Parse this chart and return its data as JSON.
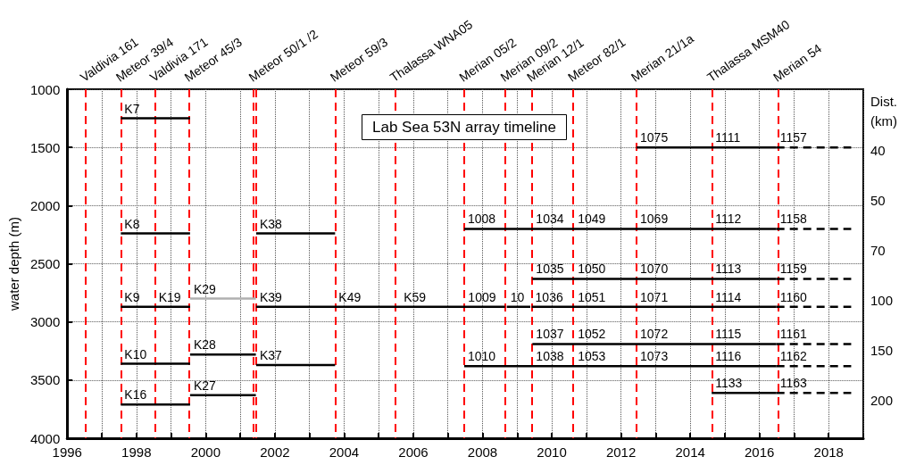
{
  "chart_data": {
    "type": "line",
    "title": "Lab Sea 53N array timeline",
    "ylabel": "water depth (m)",
    "annotations": [
      "Dist. (km)",
      "40",
      "50",
      "70",
      "100",
      "150",
      "200",
      {
        "text": "K7",
        "x": 1997.55,
        "y": 1250
      },
      {
        "text": "1075",
        "x": 2012.45,
        "y": 1500
      },
      {
        "text": "1111",
        "x": 2014.62,
        "y": 1500
      },
      {
        "text": "1157",
        "x": 2016.49,
        "y": 1500
      },
      {
        "text": "K8",
        "x": 1997.55,
        "y": 2240
      },
      {
        "text": "K38",
        "x": 2001.46,
        "y": 2240
      },
      {
        "text": "1008",
        "x": 2007.47,
        "y": 2200
      },
      {
        "text": "1034",
        "x": 2009.44,
        "y": 2200
      },
      {
        "text": "1049",
        "x": 2010.65,
        "y": 2200
      },
      {
        "text": "1069",
        "x": 2012.45,
        "y": 2200
      },
      {
        "text": "1112",
        "x": 2014.62,
        "y": 2200
      },
      {
        "text": "1158",
        "x": 2016.49,
        "y": 2200
      },
      {
        "text": "1035",
        "x": 2009.44,
        "y": 2630
      },
      {
        "text": "1050",
        "x": 2010.65,
        "y": 2630
      },
      {
        "text": "1070",
        "x": 2012.45,
        "y": 2630
      },
      {
        "text": "1113",
        "x": 2014.62,
        "y": 2630
      },
      {
        "text": "1159",
        "x": 2016.49,
        "y": 2630
      },
      {
        "text": "K9",
        "x": 1997.55,
        "y": 2870
      },
      {
        "text": "K19",
        "x": 1998.54,
        "y": 2870
      },
      {
        "text": "K29",
        "x": 1999.55,
        "y": 2800
      },
      {
        "text": "K39",
        "x": 2001.46,
        "y": 2870
      },
      {
        "text": "K49",
        "x": 2003.74,
        "y": 2870
      },
      {
        "text": "K59",
        "x": 2005.62,
        "y": 2870
      },
      {
        "text": "1009",
        "x": 2007.48,
        "y": 2870
      },
      {
        "text": "10",
        "x": 2008.7,
        "y": 2870
      },
      {
        "text": "1036",
        "x": 2009.42,
        "y": 2870
      },
      {
        "text": "1051",
        "x": 2010.65,
        "y": 2870
      },
      {
        "text": "1071",
        "x": 2012.45,
        "y": 2870
      },
      {
        "text": "1114",
        "x": 2014.62,
        "y": 2870
      },
      {
        "text": "1160",
        "x": 2016.49,
        "y": 2870
      },
      {
        "text": "1037",
        "x": 2009.44,
        "y": 3190
      },
      {
        "text": "1052",
        "x": 2010.65,
        "y": 3190
      },
      {
        "text": "1072",
        "x": 2012.45,
        "y": 3190
      },
      {
        "text": "1115",
        "x": 2014.62,
        "y": 3190
      },
      {
        "text": "1161",
        "x": 2016.49,
        "y": 3190
      },
      {
        "text": "K28",
        "x": 1999.55,
        "y": 3280
      },
      {
        "text": "K10",
        "x": 1997.55,
        "y": 3360
      },
      {
        "text": "K37",
        "x": 2001.46,
        "y": 3370
      },
      {
        "text": "1010",
        "x": 2007.47,
        "y": 3380
      },
      {
        "text": "1038",
        "x": 2009.44,
        "y": 3380
      },
      {
        "text": "1053",
        "x": 2010.65,
        "y": 3380
      },
      {
        "text": "1073",
        "x": 2012.45,
        "y": 3380
      },
      {
        "text": "1116",
        "x": 2014.62,
        "y": 3380
      },
      {
        "text": "1162",
        "x": 2016.49,
        "y": 3380
      },
      {
        "text": "K27",
        "x": 1999.55,
        "y": 3630
      },
      {
        "text": "1133",
        "x": 2014.62,
        "y": 3610
      },
      {
        "text": "1163",
        "x": 2016.49,
        "y": 3610
      },
      {
        "text": "K16",
        "x": 1997.55,
        "y": 3710
      }
    ],
    "xlim": [
      1996,
      2019
    ],
    "xticks": [
      1996,
      {
        "value": 1997,
        "label": null
      },
      1998,
      {
        "value": 1999,
        "label": null
      },
      2000,
      {
        "value": 2001,
        "label": null
      },
      2002,
      {
        "value": 2003,
        "label": null
      },
      2004,
      {
        "value": 2005,
        "label": null
      },
      2006,
      {
        "value": 2007,
        "label": null
      },
      2008,
      {
        "value": 2009,
        "label": null
      },
      2010,
      {
        "value": 2011,
        "label": null
      },
      2012,
      {
        "value": 2013,
        "label": null
      },
      2014,
      {
        "value": 2015,
        "label": null
      },
      2016,
      {
        "value": 2017,
        "label": null
      },
      2018,
      {
        "value": 2019,
        "label": null
      }
    ],
    "ylim": [
      4000,
      1000
    ],
    "yticks": [
      1000,
      1500,
      2000,
      2500,
      3000,
      3500,
      4000
    ],
    "grid": true,
    "ref_lines": [
      {
        "axis": "x",
        "value": 1996.52,
        "label": "Valdivia 161",
        "color": "#ff0000",
        "line_style": "dashed"
      },
      {
        "axis": "x",
        "value": 1997.55,
        "label": "Meteor 39/4",
        "color": "#ff0000",
        "line_style": "dashed"
      },
      {
        "axis": "x",
        "value": 1998.53,
        "label": "Valdivia 171",
        "color": "#ff0000",
        "line_style": "dashed"
      },
      {
        "axis": "x",
        "value": 1999.53,
        "label": "Meteor 45/3",
        "color": "#ff0000",
        "line_style": "dashed"
      },
      {
        "axis": "x",
        "value": 2001.39,
        "label": "Meteor 50/1 /2",
        "color": "#ff0000",
        "line_style": "dashed"
      },
      {
        "axis": "x",
        "value": 2001.45,
        "label": null,
        "color": "#ff0000",
        "line_style": "dashed"
      },
      {
        "axis": "x",
        "value": 2003.74,
        "label": "Meteor 59/3",
        "color": "#ff0000",
        "line_style": "dashed"
      },
      {
        "axis": "x",
        "value": 2005.47,
        "label": "Thalassa WNA05",
        "color": "#ff0000",
        "line_style": "dashed"
      },
      {
        "axis": "x",
        "value": 2007.47,
        "label": "Merian 05/2",
        "color": "#ff0000",
        "line_style": "dashed"
      },
      {
        "axis": "x",
        "value": 2008.66,
        "label": "Merian 09/2",
        "color": "#ff0000",
        "line_style": "dashed"
      },
      {
        "axis": "x",
        "value": 2009.42,
        "label": "Merian 12/1",
        "color": "#ff0000",
        "line_style": "dashed"
      },
      {
        "axis": "x",
        "value": 2010.61,
        "label": "Meteor 82/1",
        "color": "#ff0000",
        "line_style": "dashed"
      },
      {
        "axis": "x",
        "value": 2012.43,
        "label": "Merian 21/1a",
        "color": "#ff0000",
        "line_style": "dashed"
      },
      {
        "axis": "x",
        "value": 2014.63,
        "label": "Thalassa MSM40",
        "color": "#ff0000",
        "line_style": "dashed"
      },
      {
        "axis": "x",
        "value": 2016.54,
        "label": "Merian 54",
        "color": "#ff0000",
        "line_style": "dashed"
      }
    ],
    "series": [
      {
        "color": "#000000",
        "x": [
          1997.55,
          1999.55
        ],
        "values": [
          1250,
          1250
        ]
      },
      {
        "color": "#000000",
        "x": [
          2012.45,
          2014.62,
          2016.49
        ],
        "values": [
          1500,
          1500,
          1500
        ]
      },
      {
        "color": "#000000",
        "x": [
          2016.49,
          2018.65
        ],
        "values": [
          1500,
          1500
        ],
        "line_style": "dashed"
      },
      {
        "color": "#000000",
        "x": [
          1997.55,
          1999.55,
          2000.5,
          2001.46,
          2003.74
        ],
        "values": [
          2240,
          2240,
          null,
          2240,
          2240
        ]
      },
      {
        "color": "#000000",
        "x": [
          2007.47,
          2009.44,
          2010.65,
          2012.45,
          2014.62,
          2016.49
        ],
        "values": [
          2200,
          2200,
          2200,
          2200,
          2200,
          2200
        ]
      },
      {
        "color": "#000000",
        "x": [
          2016.49,
          2018.65
        ],
        "values": [
          2200,
          2200
        ],
        "line_style": "dashed"
      },
      {
        "color": "#000000",
        "x": [
          2009.44,
          2010.65,
          2012.45,
          2014.62,
          2016.49
        ],
        "values": [
          2630,
          2630,
          2630,
          2630,
          2630
        ]
      },
      {
        "color": "#000000",
        "x": [
          2016.49,
          2018.65
        ],
        "values": [
          2630,
          2630
        ],
        "line_style": "dashed"
      },
      {
        "color": "#000000",
        "x": [
          1997.55,
          1998.54,
          1999.55,
          2000.5,
          2001.46,
          2003.74,
          2005.62,
          2007.48,
          2008.65,
          2008.68,
          2008.7,
          2009.38,
          2009.4,
          2009.42,
          2010.65,
          2012.45,
          2014.62,
          2016.49
        ],
        "values": [
          2870,
          2870,
          2870,
          null,
          2870,
          2870,
          2870,
          2870,
          2870,
          null,
          2870,
          2870,
          null,
          2870,
          2870,
          2870,
          2870,
          2870
        ]
      },
      {
        "color": "#b0b0b0",
        "x": [
          1999.55,
          2001.45
        ],
        "values": [
          2800,
          2800
        ]
      },
      {
        "color": "#000000",
        "x": [
          2016.49,
          2018.65
        ],
        "values": [
          2870,
          2870
        ],
        "line_style": "dashed"
      },
      {
        "color": "#000000",
        "x": [
          2009.44,
          2010.65,
          2012.45,
          2014.62,
          2016.49
        ],
        "values": [
          3190,
          3190,
          3190,
          3190,
          3190
        ]
      },
      {
        "color": "#000000",
        "x": [
          2016.49,
          2018.65
        ],
        "values": [
          3190,
          3190
        ],
        "line_style": "dashed"
      },
      {
        "color": "#000000",
        "x": [
          1999.55,
          2001.45
        ],
        "values": [
          3280,
          3280
        ]
      },
      {
        "color": "#000000",
        "x": [
          1997.55,
          1999.55
        ],
        "values": [
          3360,
          3360
        ]
      },
      {
        "color": "#000000",
        "x": [
          2001.46,
          2003.74
        ],
        "values": [
          3370,
          3370
        ]
      },
      {
        "color": "#000000",
        "x": [
          2007.47,
          2009.44,
          2010.65,
          2012.45,
          2014.62,
          2016.49
        ],
        "values": [
          3380,
          3380,
          3380,
          3380,
          3380,
          3380
        ]
      },
      {
        "color": "#000000",
        "x": [
          2016.49,
          2018.65
        ],
        "values": [
          3380,
          3380
        ],
        "line_style": "dashed"
      },
      {
        "color": "#000000",
        "x": [
          1999.55,
          2001.45
        ],
        "values": [
          3630,
          3630
        ]
      },
      {
        "color": "#000000",
        "x": [
          2014.62,
          2016.49
        ],
        "values": [
          3610,
          3610
        ]
      },
      {
        "color": "#000000",
        "x": [
          2016.49,
          2018.65
        ],
        "values": [
          3610,
          3610
        ],
        "line_style": "dashed"
      },
      {
        "color": "#000000",
        "x": [
          1997.55,
          1999.55
        ],
        "values": [
          3710,
          3710
        ]
      }
    ]
  }
}
